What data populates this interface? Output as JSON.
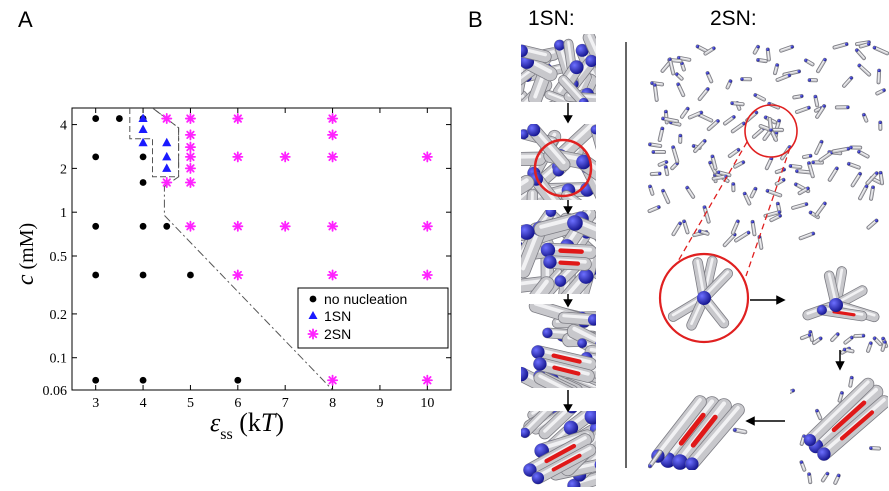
{
  "panels": {
    "a_label": "A",
    "b_label": "B"
  },
  "panel_b": {
    "col1_title": "1SN:",
    "col2_title": "2SN:"
  },
  "chart_data": {
    "type": "scatter",
    "xlabel_symbol": "ε",
    "xlabel_sub": "ss",
    "xlabel_unit_open": " (k",
    "xlabel_unit_T": "T",
    "xlabel_unit_close": ")",
    "ylabel_symbol": "c",
    "ylabel_unit": " (mM)",
    "xlim": [
      2.5,
      10.5
    ],
    "ylim": [
      0.06,
      5.2
    ],
    "yscale": "log",
    "x_ticks": [
      3,
      4,
      5,
      6,
      7,
      8,
      9,
      10
    ],
    "x_tick_labels": [
      "3",
      "4",
      "5",
      "6",
      "7",
      "8",
      "9",
      "10"
    ],
    "y_ticks": [
      0.06,
      0.1,
      0.2,
      0.5,
      1,
      2,
      4
    ],
    "y_tick_labels": [
      "0.06",
      "0.1",
      "0.2",
      "0.5",
      "1",
      "2",
      "4"
    ],
    "legend_position": "lower-right",
    "series": [
      {
        "name": "no nucleation",
        "marker": "circle",
        "color": "#000000",
        "points": [
          [
            3,
            4.4
          ],
          [
            3.5,
            4.4
          ],
          [
            4,
            4.4
          ],
          [
            3,
            2.4
          ],
          [
            4,
            2.4
          ],
          [
            4,
            1.6
          ],
          [
            3,
            0.8
          ],
          [
            4,
            0.8
          ],
          [
            4.5,
            0.8
          ],
          [
            3,
            0.37
          ],
          [
            4,
            0.37
          ],
          [
            5,
            0.37
          ],
          [
            3,
            0.07
          ],
          [
            4,
            0.07
          ],
          [
            6,
            0.07
          ]
        ]
      },
      {
        "name": "1SN",
        "marker": "triangle",
        "color": "#1a1aff",
        "points": [
          [
            4,
            4.4
          ],
          [
            4,
            3.7
          ],
          [
            4,
            3.0
          ],
          [
            4.5,
            3.0
          ],
          [
            4.5,
            2.4
          ],
          [
            4.5,
            2.0
          ]
        ]
      },
      {
        "name": "2SN",
        "marker": "asterisk",
        "color": "#ff22ff",
        "points": [
          [
            4.5,
            4.4
          ],
          [
            5,
            4.4
          ],
          [
            6,
            4.4
          ],
          [
            8,
            4.4
          ],
          [
            5,
            3.4
          ],
          [
            8,
            3.4
          ],
          [
            5,
            2.8
          ],
          [
            5,
            2.4
          ],
          [
            6,
            2.4
          ],
          [
            7,
            2.4
          ],
          [
            8,
            2.4
          ],
          [
            10,
            2.4
          ],
          [
            5,
            2.0
          ],
          [
            4.5,
            1.6
          ],
          [
            5,
            1.6
          ],
          [
            5,
            0.8
          ],
          [
            6,
            0.8
          ],
          [
            7,
            0.8
          ],
          [
            8,
            0.8
          ],
          [
            10,
            0.8
          ],
          [
            6,
            0.37
          ],
          [
            8,
            0.37
          ],
          [
            10,
            0.37
          ],
          [
            8,
            0.07
          ],
          [
            10,
            0.07
          ]
        ]
      }
    ],
    "boundary_1sn": [
      [
        3.72,
        5.2
      ],
      [
        3.72,
        3.2
      ],
      [
        4.2,
        3.2
      ],
      [
        4.2,
        1.75
      ],
      [
        4.75,
        1.75
      ],
      [
        4.75,
        3.8
      ],
      [
        4.2,
        5.2
      ]
    ],
    "boundary_2sn": [
      [
        4.2,
        5.2
      ],
      [
        4.75,
        3.8
      ],
      [
        4.75,
        1.75
      ],
      [
        4.45,
        1.5
      ],
      [
        4.45,
        0.95
      ],
      [
        8.0,
        0.06
      ]
    ]
  },
  "colors": {
    "rod_gray": "#c8c8cc",
    "rod_shadow": "#8f8f96",
    "bead_blue": "#1e22b8",
    "highlight_red": "#e01818",
    "circle_red": "#e02020"
  }
}
